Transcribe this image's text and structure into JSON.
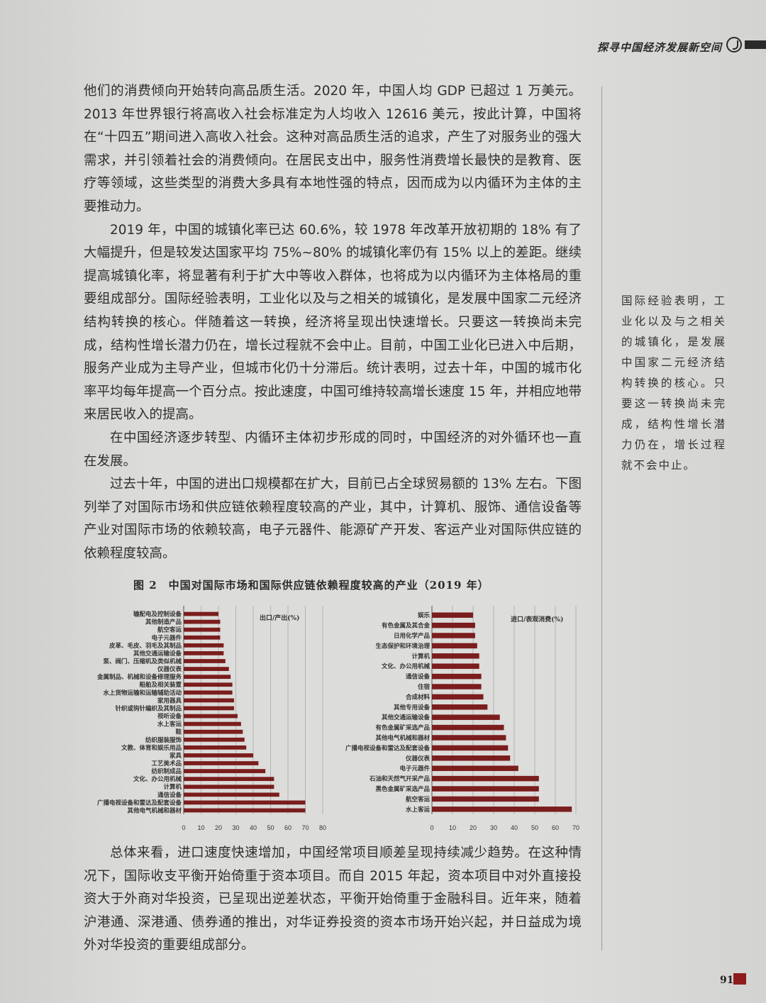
{
  "header": {
    "title": "探寻中国经济发展新空间"
  },
  "paragraphs_top": [
    "他们的消费倾向开始转向高品质生活。2020 年，中国人均 GDP 已超过 1 万美元。2013 年世界银行将高收入社会标准定为人均收入 12616 美元，按此计算，中国将在“十四五”期间进入高收入社会。这种对高品质生活的追求，产生了对服务业的强大需求，并引领着社会的消费倾向。在居民支出中，服务性消费增长最快的是教育、医疗等领域，这些类型的消费大多具有本地性强的特点，因而成为以内循环为主体的主要推动力。",
    "2019 年，中国的城镇化率已达 60.6%，较 1978 年改革开放初期的 18% 有了大幅提升，但是较发达国家平均 75%~80% 的城镇化率仍有 15% 以上的差距。继续提高城镇化率，将显著有利于扩大中等收入群体，也将成为以内循环为主体格局的重要组成部分。国际经验表明，工业化以及与之相关的城镇化，是发展中国家二元经济结构转换的核心。伴随着这一转换，经济将呈现出快速增长。只要这一转换尚未完成，结构性增长潜力仍在，增长过程就不会中止。目前，中国工业化已进入中后期，服务产业成为主导产业，但城市化仍十分滞后。统计表明，过去十年，中国的城市化率平均每年提高一个百分点。按此速度，中国可维持较高增长速度 15 年，并相应地带来居民收入的提高。",
    "在中国经济逐步转型、内循环主体初步形成的同时，中国经济的对外循环也一直在发展。",
    "过去十年，中国的进出口规模都在扩大，目前已占全球贸易额的 13% 左右。下图列举了对国际市场和供应链依赖程度较高的产业，其中，计算机、服饰、通信设备等产业对国际市场的依赖较高，电子元器件、能源矿产开发、客运产业对国际供应链的依赖程度较高。"
  ],
  "paragraphs_bottom": [
    "总体来看，进口速度快速增加，中国经常项目顺差呈现持续减少趋势。在这种情况下，国际收支平衡开始倚重于资本项目。而自 2015 年起，资本项目中对外直接投资大于外商对华投资，已呈现出逆差状态，平衡开始倚重于金融科目。近年来，随着沪港通、深港通、债券通的推出，对华证券投资的资本市场开始兴起，并日益成为境外对华投资的重要组成部分。"
  ],
  "sidebar": {
    "quote": "国际经验表明，工业化以及与之相关的城镇化，是发展中国家二元经济结构转换的核心。只要这一转换尚未完成，结构性增长潜力仍在，增长过程就不会中止。"
  },
  "figure": {
    "title": "图 2　中国对国际市场和国际供应链依赖程度较高的产业（2019 年）"
  },
  "chart_data": [
    {
      "type": "bar",
      "orientation": "horizontal",
      "legend_label": "出口/产出(%)",
      "categories": [
        "输配电及控制设备",
        "其他制造产品",
        "航空客运",
        "电子元器件",
        "皮革、毛皮、羽毛及其制品",
        "其他交通运输设备",
        "泵、阀门、压缩机及类似机械",
        "仪器仪表",
        "金属制品、机械和设备修理服务",
        "船舶及相关装置",
        "水上货物运输和运输辅助活动",
        "家用器具",
        "针织或钩针编织及其制品",
        "视听设备",
        "水上客运",
        "鞋",
        "纺织服装服饰",
        "文教、体育和娱乐用品",
        "家具",
        "工艺美术品",
        "纺织制成品",
        "文化、办公用机械",
        "计算机",
        "通信设备",
        "广播电视设备和雷达及配套设备",
        "其他电气机械和器材"
      ],
      "values": [
        20,
        21,
        21,
        21,
        23,
        23,
        24,
        26,
        27,
        28,
        28,
        29,
        29,
        31,
        33,
        34,
        35,
        36,
        40,
        43,
        47,
        52,
        52,
        55,
        70,
        70
      ],
      "xlim": [
        0,
        80
      ],
      "xticks": [
        0,
        10,
        20,
        30,
        40,
        50,
        60,
        70,
        80
      ],
      "color": "#7a1d1d"
    },
    {
      "type": "bar",
      "orientation": "horizontal",
      "legend_label": "进口/表观消费(%)",
      "categories": [
        "娱乐",
        "有色金属及其合金",
        "日用化学产品",
        "生态保护和环境治理",
        "计算机",
        "文化、办公用机械",
        "通信设备",
        "住宿",
        "合成材料",
        "其他专用设备",
        "其他交通运输设备",
        "有色金属矿采选产品",
        "其他电气机械和器材",
        "广播电视设备和雷达及配套设备",
        "仪器仪表",
        "电子元器件",
        "石油和天然气开采产品",
        "黑色金属矿采选产品",
        "航空客运",
        "水上客运"
      ],
      "values": [
        20,
        21,
        21,
        22,
        23,
        23,
        24,
        24,
        25,
        27,
        33,
        35,
        36,
        37,
        38,
        42,
        52,
        52,
        52,
        68
      ],
      "xlim": [
        0,
        70
      ],
      "xticks": [
        0,
        10,
        20,
        30,
        40,
        50,
        60,
        70
      ],
      "color": "#7a1d1d"
    }
  ],
  "page_number": "91"
}
